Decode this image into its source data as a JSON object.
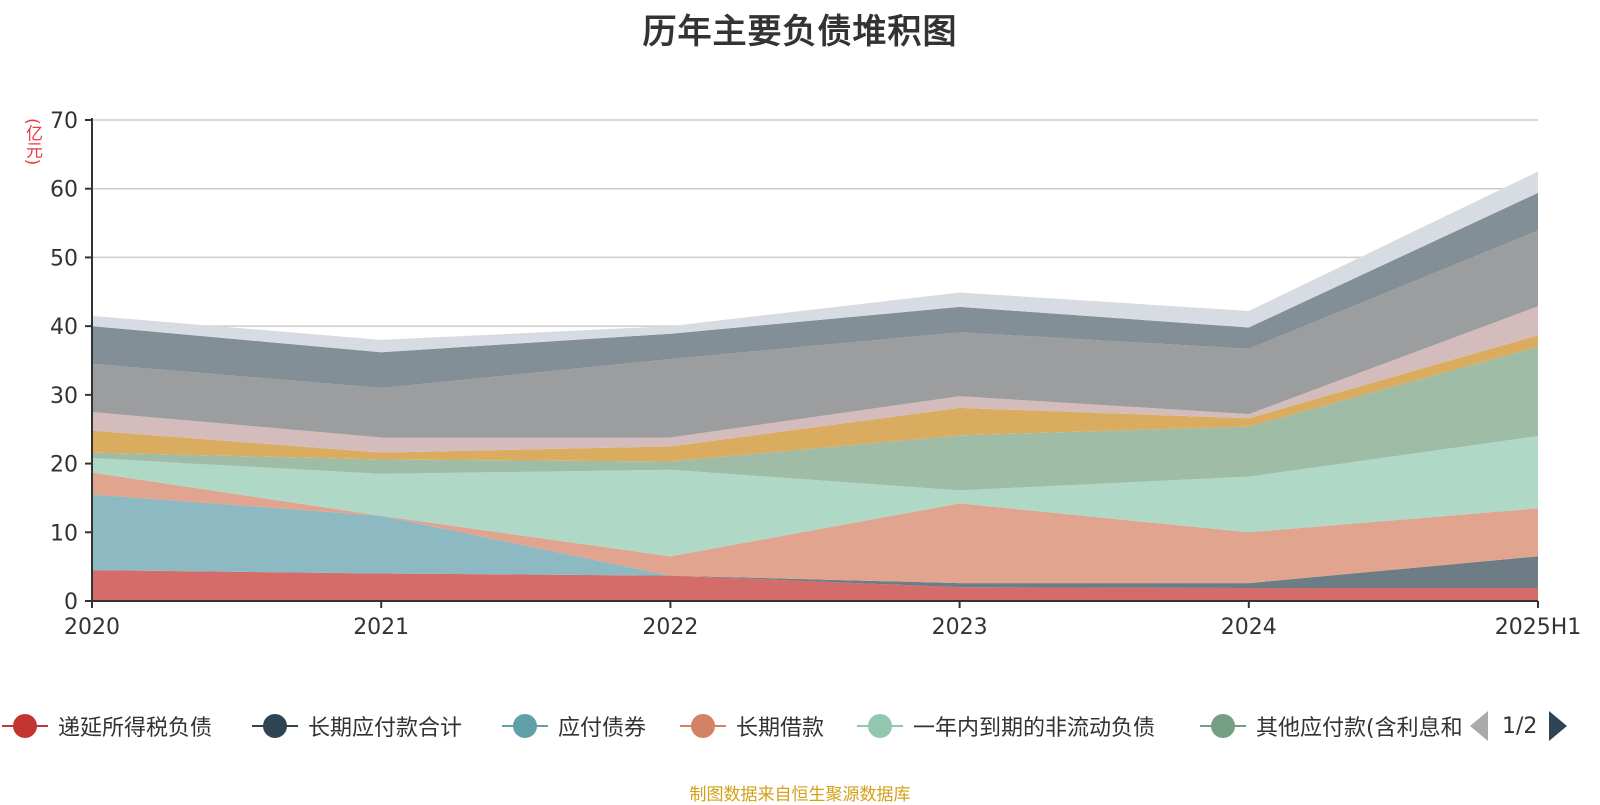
{
  "title": "历年主要负债堆积图",
  "unit_label": "(亿元)",
  "source_note": "制图数据来自恒生聚源数据库",
  "pager": {
    "text": "1/2"
  },
  "chart_data": {
    "type": "area",
    "stacked": true,
    "x": [
      "2020",
      "2021",
      "2022",
      "2023",
      "2024",
      "2025H1"
    ],
    "ylim": [
      0,
      70
    ],
    "yticks": [
      0,
      10,
      20,
      30,
      40,
      50,
      60,
      70
    ],
    "grid": true,
    "legend_position": "bottom",
    "series": [
      {
        "name": "递延所得税负债",
        "color": "#d46c6a",
        "marker_color": "#c23531",
        "values": [
          4.5,
          4.0,
          3.7,
          2.0,
          1.9,
          1.9
        ]
      },
      {
        "name": "长期应付款合计",
        "color": "#6e7c86",
        "marker_color": "#2f4554",
        "values": [
          0,
          0,
          0,
          0.6,
          0.7,
          4.6
        ]
      },
      {
        "name": "应付债券",
        "color": "#8db9c2",
        "marker_color": "#61a0a8",
        "values": [
          11,
          8.4,
          0,
          0,
          0,
          0
        ]
      },
      {
        "name": "长期借款",
        "color": "#e0a48f",
        "marker_color": "#d48265",
        "values": [
          3.2,
          0,
          2.8,
          11.6,
          7.4,
          7
        ]
      },
      {
        "name": "一年内到期的非流动负债",
        "color": "#b0d8c6",
        "marker_color": "#91c7ae",
        "values": [
          2.1,
          6.1,
          12.6,
          1.9,
          8.1,
          10.5
        ]
      },
      {
        "name": "其他应付款(含利息和",
        "color": "#9ebca6",
        "marker_color": "#749f83",
        "values": [
          0.8,
          2.1,
          1.2,
          8.0,
          7.3,
          13.0
        ]
      },
      {
        "name": "",
        "color": "#daac60",
        "values": [
          3.2,
          1.0,
          2.2,
          4.0,
          1.2,
          1.7
        ]
      },
      {
        "name": "",
        "color": "#d4bcbc",
        "values": [
          2.7,
          2.2,
          1.3,
          1.7,
          0.6,
          4.2
        ]
      },
      {
        "name": "",
        "color": "#9c9d9f",
        "values": [
          7.0,
          7.2,
          11.4,
          9.3,
          9.5,
          11.0
        ]
      },
      {
        "name": "",
        "color": "#838f97",
        "values": [
          5.5,
          5.2,
          3.7,
          3.7,
          3.1,
          5.5
        ]
      },
      {
        "name": "",
        "color": "#d6dce2",
        "values": [
          1.5,
          1.8,
          1.1,
          2.1,
          2.4,
          3.1
        ]
      }
    ]
  }
}
